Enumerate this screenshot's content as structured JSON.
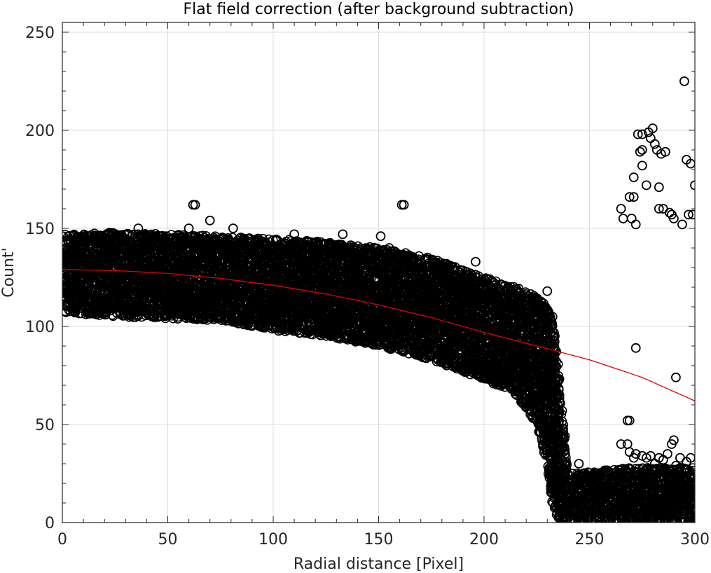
{
  "chart_data": {
    "type": "scatter",
    "title": "Flat field correction (after background subtraction)",
    "xlabel": "Radial distance [Pixel]",
    "ylabel": "Count'",
    "xlim": [
      0,
      300
    ],
    "ylim": [
      0,
      255
    ],
    "xticks": [
      0,
      50,
      100,
      150,
      200,
      250,
      300
    ],
    "yticks": [
      0,
      50,
      100,
      150,
      200,
      250
    ],
    "xminor_step": 10,
    "yminor_step": 10,
    "grid": true,
    "marker": "open-circle",
    "marker_color": "#000000",
    "fit_color": "#e00000",
    "series": [
      {
        "kind": "scatter",
        "description_band": [
          {
            "x": 0,
            "ymin": 107,
            "ymax": 147
          },
          {
            "x": 25,
            "ymin": 105,
            "ymax": 148
          },
          {
            "x": 50,
            "ymin": 104,
            "ymax": 147
          },
          {
            "x": 75,
            "ymin": 103,
            "ymax": 146
          },
          {
            "x": 100,
            "ymin": 98,
            "ymax": 145
          },
          {
            "x": 125,
            "ymin": 95,
            "ymax": 143
          },
          {
            "x": 150,
            "ymin": 90,
            "ymax": 140
          },
          {
            "x": 175,
            "ymin": 83,
            "ymax": 135
          },
          {
            "x": 200,
            "ymin": 73,
            "ymax": 125
          },
          {
            "x": 215,
            "ymin": 65,
            "ymax": 120
          },
          {
            "x": 225,
            "ymin": 50,
            "ymax": 115
          },
          {
            "x": 230,
            "ymin": 30,
            "ymax": 110
          },
          {
            "x": 233,
            "ymin": 5,
            "ymax": 105
          },
          {
            "x": 236,
            "ymin": 0,
            "ymax": 70
          },
          {
            "x": 240,
            "ymin": 0,
            "ymax": 25
          },
          {
            "x": 270,
            "ymin": 0,
            "ymax": 28
          },
          {
            "x": 300,
            "ymin": 0,
            "ymax": 28
          }
        ],
        "points": [
          [
            62,
            162
          ],
          [
            63,
            162
          ],
          [
            70,
            154
          ],
          [
            36,
            150
          ],
          [
            60,
            150
          ],
          [
            81,
            150
          ],
          [
            110,
            147
          ],
          [
            133,
            147
          ],
          [
            151,
            146
          ],
          [
            154,
            139
          ],
          [
            161,
            162
          ],
          [
            162,
            162
          ],
          [
            155,
            140
          ],
          [
            196,
            133
          ],
          [
            230,
            118
          ],
          [
            245,
            30
          ],
          [
            238,
            43
          ],
          [
            265,
            160
          ],
          [
            266,
            155
          ],
          [
            270,
            155
          ],
          [
            272,
            152
          ],
          [
            269,
            166
          ],
          [
            271,
            166
          ],
          [
            271,
            176
          ],
          [
            275,
            182
          ],
          [
            274,
            189
          ],
          [
            275,
            190
          ],
          [
            273,
            198
          ],
          [
            275,
            198
          ],
          [
            278,
            199
          ],
          [
            280,
            201
          ],
          [
            279,
            196
          ],
          [
            281,
            193
          ],
          [
            282,
            190
          ],
          [
            284,
            188
          ],
          [
            286,
            189
          ],
          [
            283,
            171
          ],
          [
            277,
            172
          ],
          [
            283,
            160
          ],
          [
            285,
            160
          ],
          [
            288,
            158
          ],
          [
            290,
            155
          ],
          [
            289,
            157
          ],
          [
            294,
            152
          ],
          [
            296,
            185
          ],
          [
            298,
            183
          ],
          [
            300,
            172
          ],
          [
            297,
            157
          ],
          [
            299,
            157
          ],
          [
            295,
            225
          ],
          [
            272,
            89
          ],
          [
            291,
            74
          ],
          [
            268,
            52
          ],
          [
            269,
            52
          ],
          [
            265,
            40
          ],
          [
            268,
            40
          ],
          [
            290,
            42
          ],
          [
            289,
            40
          ],
          [
            272,
            35
          ],
          [
            275,
            34
          ],
          [
            279,
            34
          ],
          [
            283,
            33
          ],
          [
            285,
            32
          ],
          [
            293,
            33
          ],
          [
            298,
            33
          ],
          [
            269,
            36
          ],
          [
            277,
            33
          ],
          [
            287,
            35
          ],
          [
            296,
            31
          ],
          [
            271,
            33
          ],
          [
            281,
            30
          ],
          [
            291,
            29
          ]
        ]
      },
      {
        "kind": "line",
        "x": [
          0,
          25,
          50,
          75,
          100,
          125,
          150,
          175,
          200,
          225,
          250,
          275,
          300
        ],
        "y": [
          129,
          128.5,
          127,
          124.5,
          121,
          116.5,
          111,
          104.5,
          97,
          90,
          83,
          74,
          62
        ]
      }
    ]
  }
}
